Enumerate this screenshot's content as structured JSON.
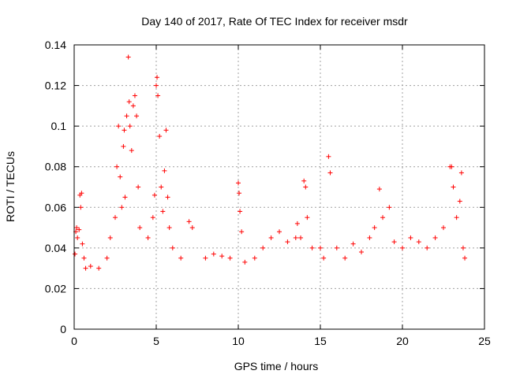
{
  "chart_data": {
    "type": "scatter",
    "title": "Day 140 of 2017, Rate Of TEC Index for receiver msdr",
    "xlabel": "GPS time / hours",
    "ylabel": "ROTI / TECUs",
    "xlim": [
      0,
      25
    ],
    "ylim": [
      0,
      0.14
    ],
    "xticks": [
      0,
      5,
      10,
      15,
      20,
      25
    ],
    "yticks": [
      0,
      0.02,
      0.04,
      0.06,
      0.08,
      0.1,
      0.12,
      0.14
    ],
    "xtick_labels": [
      "0",
      "5",
      "10",
      "15",
      "20",
      "25"
    ],
    "ytick_labels": [
      "0",
      "0.02",
      "0.04",
      "0.06",
      "0.08",
      "0.1",
      "0.12",
      "0.14"
    ],
    "grid": true,
    "marker": "+",
    "color": "#ff0000",
    "series": [
      {
        "name": "ROTI",
        "points": [
          [
            0.05,
            0.037
          ],
          [
            0.1,
            0.048
          ],
          [
            0.15,
            0.05
          ],
          [
            0.2,
            0.045
          ],
          [
            0.3,
            0.049
          ],
          [
            0.35,
            0.066
          ],
          [
            0.4,
            0.06
          ],
          [
            0.45,
            0.067
          ],
          [
            0.5,
            0.042
          ],
          [
            0.6,
            0.035
          ],
          [
            0.7,
            0.03
          ],
          [
            1.0,
            0.031
          ],
          [
            1.5,
            0.03
          ],
          [
            2.0,
            0.035
          ],
          [
            2.2,
            0.045
          ],
          [
            2.5,
            0.055
          ],
          [
            2.6,
            0.08
          ],
          [
            2.7,
            0.1
          ],
          [
            2.8,
            0.075
          ],
          [
            2.9,
            0.06
          ],
          [
            3.0,
            0.09
          ],
          [
            3.05,
            0.098
          ],
          [
            3.1,
            0.065
          ],
          [
            3.2,
            0.105
          ],
          [
            3.3,
            0.134
          ],
          [
            3.35,
            0.112
          ],
          [
            3.4,
            0.1
          ],
          [
            3.5,
            0.088
          ],
          [
            3.6,
            0.11
          ],
          [
            3.7,
            0.115
          ],
          [
            3.8,
            0.105
          ],
          [
            3.9,
            0.07
          ],
          [
            4.0,
            0.05
          ],
          [
            4.5,
            0.045
          ],
          [
            4.8,
            0.055
          ],
          [
            4.9,
            0.066
          ],
          [
            5.0,
            0.12
          ],
          [
            5.05,
            0.124
          ],
          [
            5.1,
            0.115
          ],
          [
            5.2,
            0.095
          ],
          [
            5.3,
            0.07
          ],
          [
            5.4,
            0.058
          ],
          [
            5.5,
            0.078
          ],
          [
            5.6,
            0.098
          ],
          [
            5.7,
            0.065
          ],
          [
            5.8,
            0.05
          ],
          [
            6.0,
            0.04
          ],
          [
            6.5,
            0.035
          ],
          [
            7.0,
            0.053
          ],
          [
            7.2,
            0.05
          ],
          [
            8.0,
            0.035
          ],
          [
            8.5,
            0.037
          ],
          [
            9.0,
            0.036
          ],
          [
            9.5,
            0.035
          ],
          [
            10.0,
            0.072
          ],
          [
            10.05,
            0.067
          ],
          [
            10.1,
            0.058
          ],
          [
            10.2,
            0.048
          ],
          [
            10.4,
            0.033
          ],
          [
            11.0,
            0.035
          ],
          [
            11.5,
            0.04
          ],
          [
            12.0,
            0.045
          ],
          [
            12.5,
            0.048
          ],
          [
            13.0,
            0.043
          ],
          [
            13.5,
            0.045
          ],
          [
            13.6,
            0.052
          ],
          [
            13.8,
            0.045
          ],
          [
            14.0,
            0.073
          ],
          [
            14.1,
            0.07
          ],
          [
            14.2,
            0.055
          ],
          [
            14.5,
            0.04
          ],
          [
            15.0,
            0.04
          ],
          [
            15.2,
            0.035
          ],
          [
            15.5,
            0.085
          ],
          [
            15.6,
            0.077
          ],
          [
            16.0,
            0.04
          ],
          [
            16.5,
            0.035
          ],
          [
            17.0,
            0.042
          ],
          [
            17.5,
            0.038
          ],
          [
            18.0,
            0.045
          ],
          [
            18.3,
            0.05
          ],
          [
            18.6,
            0.069
          ],
          [
            18.8,
            0.055
          ],
          [
            19.2,
            0.06
          ],
          [
            19.5,
            0.043
          ],
          [
            20.0,
            0.04
          ],
          [
            20.5,
            0.045
          ],
          [
            21.0,
            0.043
          ],
          [
            21.5,
            0.04
          ],
          [
            22.0,
            0.045
          ],
          [
            22.5,
            0.05
          ],
          [
            22.9,
            0.08
          ],
          [
            23.0,
            0.08
          ],
          [
            23.1,
            0.07
          ],
          [
            23.3,
            0.055
          ],
          [
            23.5,
            0.063
          ],
          [
            23.6,
            0.077
          ],
          [
            23.7,
            0.04
          ],
          [
            23.8,
            0.035
          ]
        ]
      }
    ]
  }
}
